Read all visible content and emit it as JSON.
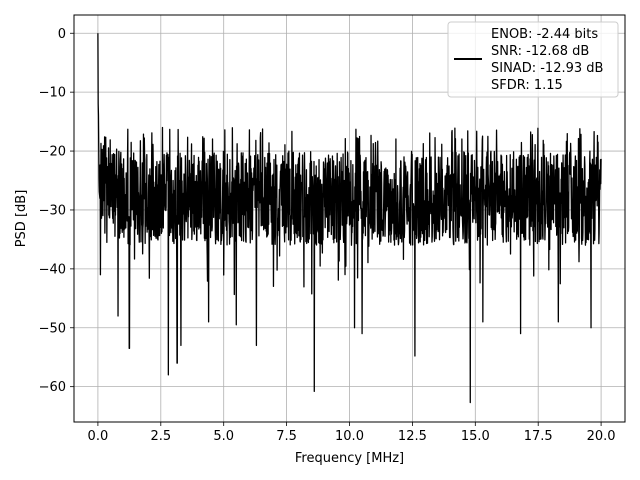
{
  "chart_data": {
    "type": "line",
    "title": "",
    "xlabel": "Frequency [MHz]",
    "ylabel": "PSD [dB]",
    "xlim": [
      -0.95,
      20.95
    ],
    "ylim": [
      -66.0,
      3.1
    ],
    "xticks": [
      0.0,
      2.5,
      5.0,
      7.5,
      10.0,
      12.5,
      15.0,
      17.5,
      20.0
    ],
    "xtick_labels": [
      "0.0",
      "2.5",
      "5.0",
      "7.5",
      "10.0",
      "12.5",
      "15.0",
      "17.5",
      "20.0"
    ],
    "yticks": [
      0,
      -10,
      -20,
      -30,
      -40,
      -50,
      -60
    ],
    "ytick_labels": [
      "0",
      "−10",
      "−20",
      "−30",
      "−40",
      "−50",
      "−60"
    ],
    "grid": true,
    "legend_position": "top-right",
    "series": [
      {
        "name": "",
        "color": "#000000",
        "x_range": [
          0.0,
          20.0
        ],
        "peak": {
          "x": 0.0,
          "y": 0.0
        },
        "approx_floor_top_db": -20,
        "approx_floor_bottom_db": -36,
        "notable_dips": [
          {
            "x": 0.1,
            "y": -41
          },
          {
            "x": 0.8,
            "y": -48
          },
          {
            "x": 1.25,
            "y": -53.5
          },
          {
            "x": 2.8,
            "y": -58
          },
          {
            "x": 3.15,
            "y": -56
          },
          {
            "x": 3.3,
            "y": -53
          },
          {
            "x": 4.4,
            "y": -49
          },
          {
            "x": 5.5,
            "y": -49.5
          },
          {
            "x": 6.3,
            "y": -53
          },
          {
            "x": 8.6,
            "y": -60.8
          },
          {
            "x": 10.2,
            "y": -50
          },
          {
            "x": 10.5,
            "y": -51
          },
          {
            "x": 12.6,
            "y": -54.8
          },
          {
            "x": 14.8,
            "y": -62.7
          },
          {
            "x": 15.3,
            "y": -49
          },
          {
            "x": 16.8,
            "y": -51
          },
          {
            "x": 18.3,
            "y": -49
          },
          {
            "x": 19.6,
            "y": -50
          }
        ]
      }
    ],
    "legend_lines": [
      "ENOB: -2.44 bits",
      "SNR: -12.68 dB",
      "SINAD: -12.93 dB",
      "SFDR: 1.15"
    ]
  }
}
